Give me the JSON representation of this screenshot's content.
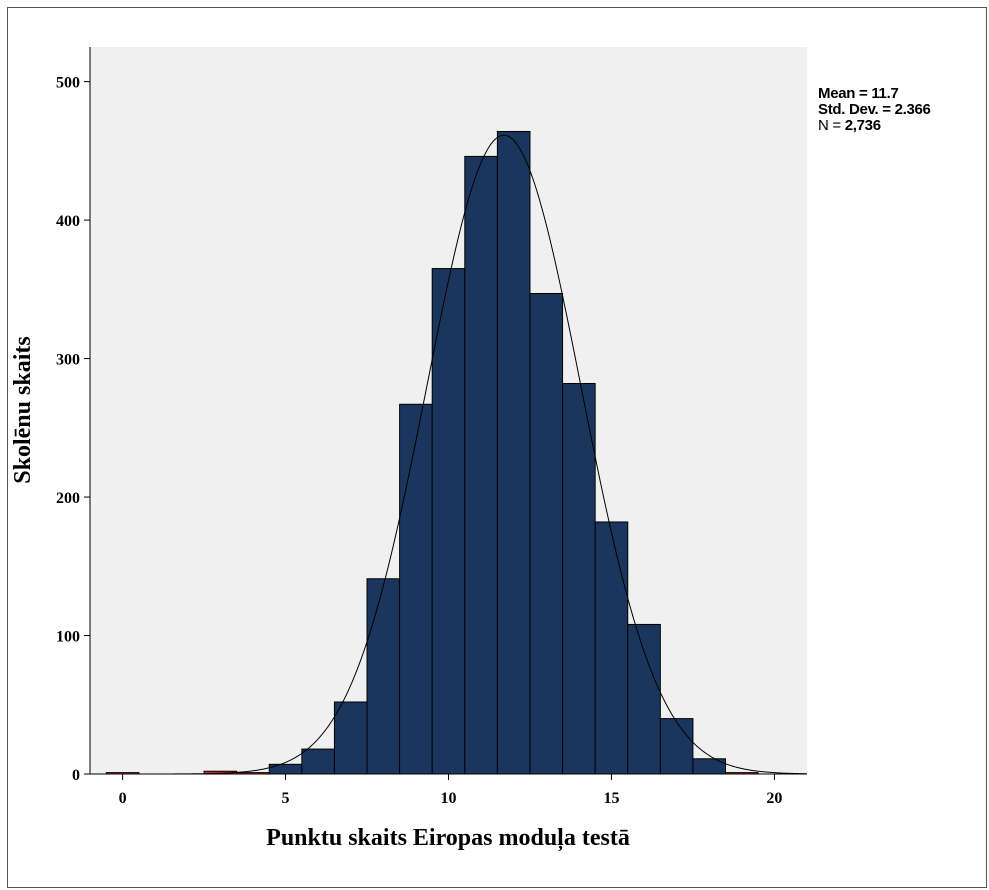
{
  "chart_data": {
    "type": "bar",
    "subtype": "histogram",
    "xlabel": "Punktu skaits Eiropas moduļa testā",
    "ylabel": "Skolēnu skaits",
    "xlim": [
      -1,
      21
    ],
    "ylim": [
      0,
      525
    ],
    "x_ticks": [
      0,
      5,
      10,
      15,
      20
    ],
    "y_ticks": [
      0,
      100,
      200,
      300,
      400,
      500
    ],
    "bin_width": 1,
    "bins": [
      {
        "x": 0,
        "count": 1,
        "color": "#d62828"
      },
      {
        "x": 1,
        "count": 0,
        "color": "#d62828"
      },
      {
        "x": 2,
        "count": 0,
        "color": "#d62828"
      },
      {
        "x": 3,
        "count": 2,
        "color": "#d62828"
      },
      {
        "x": 4,
        "count": 1,
        "color": "#d62828"
      },
      {
        "x": 5,
        "count": 7,
        "color": "#1b365d"
      },
      {
        "x": 6,
        "count": 18,
        "color": "#1b365d"
      },
      {
        "x": 7,
        "count": 52,
        "color": "#1b365d"
      },
      {
        "x": 8,
        "count": 141,
        "color": "#1b365d"
      },
      {
        "x": 9,
        "count": 267,
        "color": "#1b365d"
      },
      {
        "x": 10,
        "count": 365,
        "color": "#1b365d"
      },
      {
        "x": 11,
        "count": 446,
        "color": "#1b365d"
      },
      {
        "x": 12,
        "count": 464,
        "color": "#1b365d"
      },
      {
        "x": 13,
        "count": 347,
        "color": "#1b365d"
      },
      {
        "x": 14,
        "count": 282,
        "color": "#1b365d"
      },
      {
        "x": 15,
        "count": 182,
        "color": "#1b365d"
      },
      {
        "x": 16,
        "count": 108,
        "color": "#1b365d"
      },
      {
        "x": 17,
        "count": 40,
        "color": "#1b365d"
      },
      {
        "x": 18,
        "count": 11,
        "color": "#1b365d"
      },
      {
        "x": 19,
        "count": 1,
        "color": "#d62828"
      }
    ],
    "normal_curve": {
      "mean": 11.7,
      "sd": 2.366,
      "n": 2736
    },
    "stats_text": {
      "mean_label": "Mean = 11.7",
      "sd_label": "Std. Dev. = 2.366",
      "n_prefix": "N = ",
      "n_value": "2,736"
    },
    "grid": false,
    "plot_background": "#f0f0f0",
    "legend": "top-right"
  }
}
